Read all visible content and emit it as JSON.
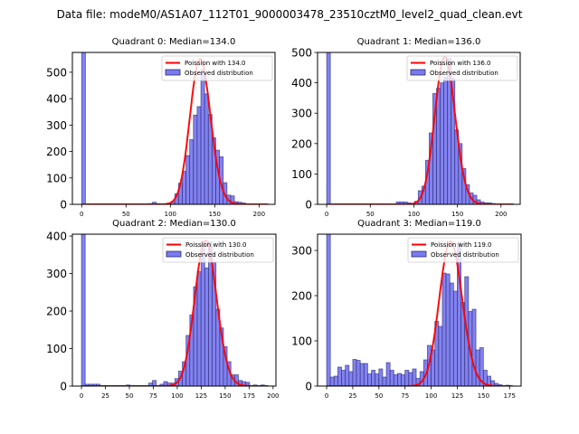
{
  "figure": {
    "suptitle": "Data file: modeM0/AS1A07_112T01_9000003478_23510cztM0_level2_quad_clean.evt"
  },
  "chart_data": [
    {
      "type": "bar",
      "title": "Quadrant 0: Median=134.0",
      "xlabel": "",
      "ylabel": "",
      "xlim": [
        -10.5,
        218
      ],
      "ylim": [
        0,
        575
      ],
      "xticks": [
        0,
        50,
        100,
        150,
        200
      ],
      "yticks": [
        0,
        100,
        200,
        300,
        400,
        500
      ],
      "grid": false,
      "legend": {
        "position": "top-right",
        "entries": [
          "Poission with 134.0",
          "Observed distribution"
        ]
      },
      "bin_width": 4.2,
      "bins": [
        {
          "x": 0,
          "count": 1000
        },
        {
          "x": 75.6,
          "count": 3
        },
        {
          "x": 79.8,
          "count": 8
        },
        {
          "x": 84.0,
          "count": 3
        },
        {
          "x": 92.4,
          "count": 2
        },
        {
          "x": 96.6,
          "count": 5
        },
        {
          "x": 100.8,
          "count": 10
        },
        {
          "x": 105.0,
          "count": 40
        },
        {
          "x": 109.2,
          "count": 80
        },
        {
          "x": 113.4,
          "count": 125
        },
        {
          "x": 117.6,
          "count": 185
        },
        {
          "x": 121.8,
          "count": 245
        },
        {
          "x": 126.0,
          "count": 338
        },
        {
          "x": 130.2,
          "count": 370
        },
        {
          "x": 134.4,
          "count": 510
        },
        {
          "x": 138.6,
          "count": 418
        },
        {
          "x": 142.8,
          "count": 340
        },
        {
          "x": 147.0,
          "count": 252
        },
        {
          "x": 151.2,
          "count": 205
        },
        {
          "x": 155.4,
          "count": 180
        },
        {
          "x": 159.6,
          "count": 82
        },
        {
          "x": 163.8,
          "count": 35
        },
        {
          "x": 168.0,
          "count": 32
        },
        {
          "x": 172.2,
          "count": 10
        },
        {
          "x": 176.4,
          "count": 8
        },
        {
          "x": 180.6,
          "count": 5
        },
        {
          "x": 184.8,
          "count": 2
        },
        {
          "x": 193.2,
          "count": 2
        },
        {
          "x": 205.8,
          "count": 2
        }
      ],
      "poisson": {
        "lambda": 134.0,
        "peak": 550,
        "x_range": [
          0,
          210
        ]
      }
    },
    {
      "type": "bar",
      "title": "Quadrant 1: Median=136.0",
      "xlabel": "",
      "ylabel": "",
      "xlim": [
        -10.5,
        222
      ],
      "ylim": [
        0,
        500
      ],
      "xticks": [
        0,
        50,
        100,
        150,
        200
      ],
      "yticks": [
        0,
        100,
        200,
        300,
        400,
        500
      ],
      "grid": false,
      "legend": {
        "position": "top-right",
        "entries": [
          "Poission with 136.0",
          "Observed distribution"
        ]
      },
      "bin_width": 4.2,
      "bins": [
        {
          "x": 0,
          "count": 1000
        },
        {
          "x": 79.8,
          "count": 8
        },
        {
          "x": 84.0,
          "count": 8
        },
        {
          "x": 88.2,
          "count": 8
        },
        {
          "x": 92.4,
          "count": 5
        },
        {
          "x": 100.8,
          "count": 10
        },
        {
          "x": 105.0,
          "count": 45
        },
        {
          "x": 109.2,
          "count": 60
        },
        {
          "x": 113.4,
          "count": 145
        },
        {
          "x": 117.6,
          "count": 235
        },
        {
          "x": 121.8,
          "count": 365
        },
        {
          "x": 126.0,
          "count": 382
        },
        {
          "x": 130.2,
          "count": 400
        },
        {
          "x": 134.4,
          "count": 418
        },
        {
          "x": 138.6,
          "count": 480
        },
        {
          "x": 142.8,
          "count": 415
        },
        {
          "x": 147.0,
          "count": 245
        },
        {
          "x": 151.2,
          "count": 200
        },
        {
          "x": 155.4,
          "count": 118
        },
        {
          "x": 159.6,
          "count": 65
        },
        {
          "x": 163.8,
          "count": 38
        },
        {
          "x": 168.0,
          "count": 30
        },
        {
          "x": 172.2,
          "count": 15
        },
        {
          "x": 176.4,
          "count": 8
        },
        {
          "x": 180.6,
          "count": 5
        },
        {
          "x": 184.8,
          "count": 5
        },
        {
          "x": 189.0,
          "count": 3
        },
        {
          "x": 210.0,
          "count": 2
        }
      ],
      "poisson": {
        "lambda": 136.0,
        "peak": 485,
        "x_range": [
          0,
          212
        ]
      }
    },
    {
      "type": "bar",
      "title": "Quadrant 2: Median=130.0",
      "xlabel": "",
      "ylabel": "",
      "xlim": [
        -9.5,
        203
      ],
      "ylim": [
        0,
        405
      ],
      "xticks": [
        0,
        25,
        50,
        75,
        100,
        125,
        150,
        175,
        200
      ],
      "yticks": [
        0,
        100,
        200,
        300,
        400
      ],
      "grid": false,
      "legend": {
        "position": "top-right",
        "entries": [
          "Poission with 130.0",
          "Observed distribution"
        ]
      },
      "bin_width": 3.9,
      "bins": [
        {
          "x": 0,
          "count": 1000
        },
        {
          "x": 3.9,
          "count": 5
        },
        {
          "x": 7.8,
          "count": 5
        },
        {
          "x": 11.7,
          "count": 5
        },
        {
          "x": 15.6,
          "count": 5
        },
        {
          "x": 46.8,
          "count": 3
        },
        {
          "x": 70.2,
          "count": 8
        },
        {
          "x": 74.1,
          "count": 15
        },
        {
          "x": 81.9,
          "count": 5
        },
        {
          "x": 85.8,
          "count": 12
        },
        {
          "x": 89.7,
          "count": 8
        },
        {
          "x": 93.6,
          "count": 8
        },
        {
          "x": 97.5,
          "count": 20
        },
        {
          "x": 101.4,
          "count": 40
        },
        {
          "x": 105.3,
          "count": 65
        },
        {
          "x": 109.2,
          "count": 135
        },
        {
          "x": 113.1,
          "count": 190
        },
        {
          "x": 117.0,
          "count": 265
        },
        {
          "x": 120.9,
          "count": 305
        },
        {
          "x": 124.8,
          "count": 385
        },
        {
          "x": 128.7,
          "count": 315
        },
        {
          "x": 132.6,
          "count": 385
        },
        {
          "x": 136.5,
          "count": 330
        },
        {
          "x": 140.4,
          "count": 205
        },
        {
          "x": 144.3,
          "count": 155
        },
        {
          "x": 148.2,
          "count": 105
        },
        {
          "x": 152.1,
          "count": 65
        },
        {
          "x": 156.0,
          "count": 30
        },
        {
          "x": 159.9,
          "count": 30
        },
        {
          "x": 163.8,
          "count": 15
        },
        {
          "x": 167.7,
          "count": 12
        },
        {
          "x": 171.6,
          "count": 10
        },
        {
          "x": 179.4,
          "count": 3
        },
        {
          "x": 187.2,
          "count": 3
        }
      ],
      "poisson": {
        "lambda": 130.0,
        "peak": 388,
        "x_range": [
          0,
          195
        ]
      }
    },
    {
      "type": "bar",
      "title": "Quadrant 3: Median=119.0",
      "xlabel": "",
      "ylabel": "",
      "xlim": [
        -8.7,
        186
      ],
      "ylim": [
        0,
        336
      ],
      "xticks": [
        0,
        25,
        50,
        75,
        100,
        125,
        150,
        175
      ],
      "yticks": [
        0,
        100,
        200,
        300
      ],
      "grid": false,
      "legend": {
        "position": "top-right",
        "entries": [
          "Poission with 119.0",
          "Observed distribution"
        ]
      },
      "bin_width": 3.57,
      "bins": [
        {
          "x": 0,
          "count": 1000
        },
        {
          "x": 3.57,
          "count": 20
        },
        {
          "x": 7.14,
          "count": 22
        },
        {
          "x": 10.71,
          "count": 42
        },
        {
          "x": 14.28,
          "count": 35
        },
        {
          "x": 17.85,
          "count": 46
        },
        {
          "x": 21.42,
          "count": 32
        },
        {
          "x": 24.99,
          "count": 59
        },
        {
          "x": 28.56,
          "count": 57
        },
        {
          "x": 32.13,
          "count": 50
        },
        {
          "x": 35.7,
          "count": 50
        },
        {
          "x": 39.27,
          "count": 27
        },
        {
          "x": 42.84,
          "count": 35
        },
        {
          "x": 46.41,
          "count": 27
        },
        {
          "x": 49.98,
          "count": 38
        },
        {
          "x": 53.55,
          "count": 20
        },
        {
          "x": 57.12,
          "count": 52
        },
        {
          "x": 60.69,
          "count": 35
        },
        {
          "x": 64.26,
          "count": 25
        },
        {
          "x": 67.83,
          "count": 28
        },
        {
          "x": 71.4,
          "count": 25
        },
        {
          "x": 74.97,
          "count": 35
        },
        {
          "x": 78.54,
          "count": 30
        },
        {
          "x": 82.11,
          "count": 38
        },
        {
          "x": 85.68,
          "count": 17
        },
        {
          "x": 89.25,
          "count": 32
        },
        {
          "x": 92.82,
          "count": 58
        },
        {
          "x": 96.39,
          "count": 90
        },
        {
          "x": 99.96,
          "count": 80
        },
        {
          "x": 103.53,
          "count": 143
        },
        {
          "x": 107.1,
          "count": 132
        },
        {
          "x": 110.67,
          "count": 250
        },
        {
          "x": 114.24,
          "count": 248
        },
        {
          "x": 117.81,
          "count": 228
        },
        {
          "x": 121.38,
          "count": 210
        },
        {
          "x": 124.95,
          "count": 318
        },
        {
          "x": 128.52,
          "count": 185
        },
        {
          "x": 132.09,
          "count": 242
        },
        {
          "x": 135.66,
          "count": 165
        },
        {
          "x": 139.23,
          "count": 170
        },
        {
          "x": 142.8,
          "count": 80
        },
        {
          "x": 146.37,
          "count": 85
        },
        {
          "x": 149.94,
          "count": 35
        },
        {
          "x": 153.51,
          "count": 22
        },
        {
          "x": 157.08,
          "count": 12
        },
        {
          "x": 160.65,
          "count": 6
        },
        {
          "x": 164.22,
          "count": 3
        },
        {
          "x": 171.36,
          "count": 2
        }
      ],
      "poisson": {
        "lambda": 119.0,
        "peak": 320,
        "x_range": [
          0,
          178
        ]
      }
    }
  ],
  "colors": {
    "bar_fill": "#7b7bf0",
    "bar_edge": "#2a2a6e",
    "poisson_line": "#ff0000"
  }
}
